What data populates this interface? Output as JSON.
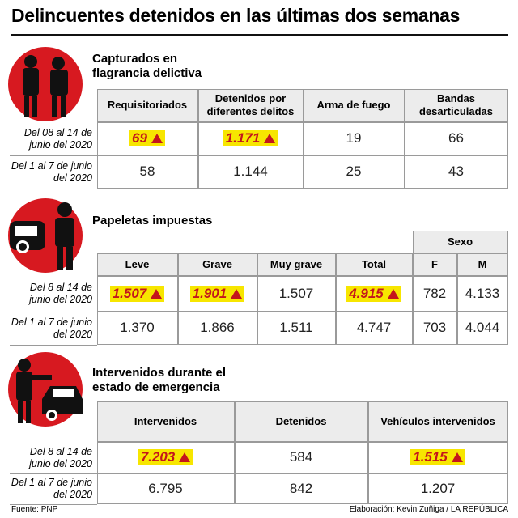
{
  "header": {
    "title": "Delincuentes detenidos en las últimas dos semanas"
  },
  "sections": [
    {
      "title": "Capturados en flagrancia delictiva",
      "headers": [
        "Requisitoriados",
        "Detenidos por diferentes delitos",
        "Arma de fuego",
        "Bandas desarticuladas"
      ],
      "rows": [
        {
          "label": "Del 08 al 14 de junio del 2020",
          "cells": [
            "69",
            "1.171",
            "19",
            "66"
          ],
          "up": [
            true,
            true,
            false,
            false
          ]
        },
        {
          "label": "Del 1 al 7 de junio del 2020",
          "cells": [
            "58",
            "1.144",
            "25",
            "43"
          ],
          "up": [
            false,
            false,
            false,
            false
          ]
        }
      ]
    },
    {
      "title": "Papeletas impuestas",
      "group_header": "Sexo",
      "headers": [
        "Leve",
        "Grave",
        "Muy grave",
        "Total",
        "F",
        "M"
      ],
      "rows": [
        {
          "label": "Del 8 al 14 de junio del 2020",
          "cells": [
            "1.507",
            "1.901",
            "1.507",
            "4.915",
            "782",
            "4.133"
          ],
          "up": [
            true,
            true,
            false,
            true,
            false,
            false
          ]
        },
        {
          "label": "Del 1 al 7 de junio del 2020",
          "cells": [
            "1.370",
            "1.866",
            "1.511",
            "4.747",
            "703",
            "4.044"
          ],
          "up": [
            false,
            false,
            false,
            false,
            false,
            false
          ]
        }
      ]
    },
    {
      "title": "Intervenidos durante el estado de emergencia",
      "headers": [
        "Intervenidos",
        "Detenidos",
        "Vehículos intervenidos"
      ],
      "rows": [
        {
          "label": "Del 8 al 14 de junio del 2020",
          "cells": [
            "7.203",
            "584",
            "1.515"
          ],
          "up": [
            true,
            false,
            true
          ]
        },
        {
          "label": "Del 1 al 7 de junio del 2020",
          "cells": [
            "6.795",
            "842",
            "1.207"
          ],
          "up": [
            false,
            false,
            false
          ]
        }
      ]
    }
  ],
  "footer": {
    "source": "Fuente: PNP",
    "credit": "Elaboración: Kevin Zuñiga / LA REPÚBLICA"
  }
}
